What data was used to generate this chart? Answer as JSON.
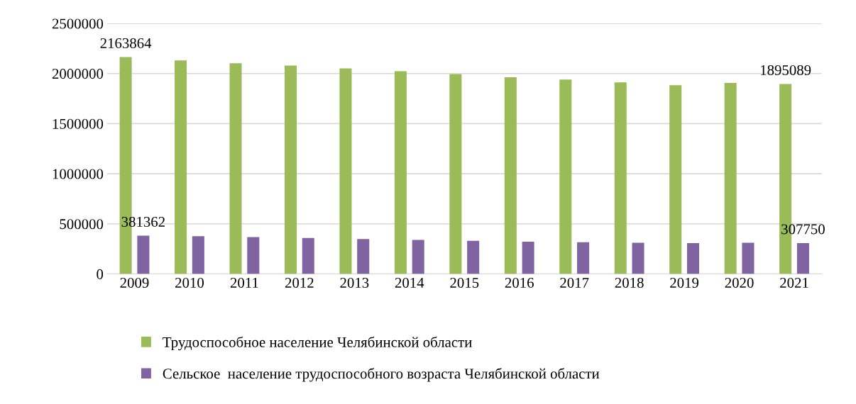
{
  "chart_data": {
    "type": "bar",
    "categories": [
      "2009",
      "2010",
      "2011",
      "2012",
      "2013",
      "2014",
      "2015",
      "2016",
      "2017",
      "2018",
      "2019",
      "2020",
      "2021"
    ],
    "series": [
      {
        "name": "Трудоспособное население Челябинской области",
        "color": "#9bbb59",
        "values": [
          2163864,
          2131000,
          2103000,
          2080000,
          2051000,
          2023000,
          1995000,
          1963000,
          1939000,
          1911000,
          1883000,
          1907000,
          1895089
        ],
        "value_labels": [
          "2163864",
          null,
          null,
          null,
          null,
          null,
          null,
          null,
          null,
          null,
          null,
          null,
          "1895089"
        ]
      },
      {
        "name": "Сельское  население трудоспособного возраста Челябинской области",
        "color": "#8064a2",
        "values": [
          381362,
          377000,
          368000,
          359000,
          349000,
          340000,
          330000,
          321000,
          316000,
          311000,
          307000,
          311000,
          307750
        ],
        "value_labels": [
          "381362",
          null,
          null,
          null,
          null,
          null,
          null,
          null,
          null,
          null,
          null,
          null,
          "307750"
        ]
      }
    ],
    "ylim": [
      0,
      2500000
    ],
    "yticks": [
      0,
      500000,
      1000000,
      1500000,
      2000000,
      2500000
    ],
    "grid": "y",
    "legend": "bottom"
  }
}
